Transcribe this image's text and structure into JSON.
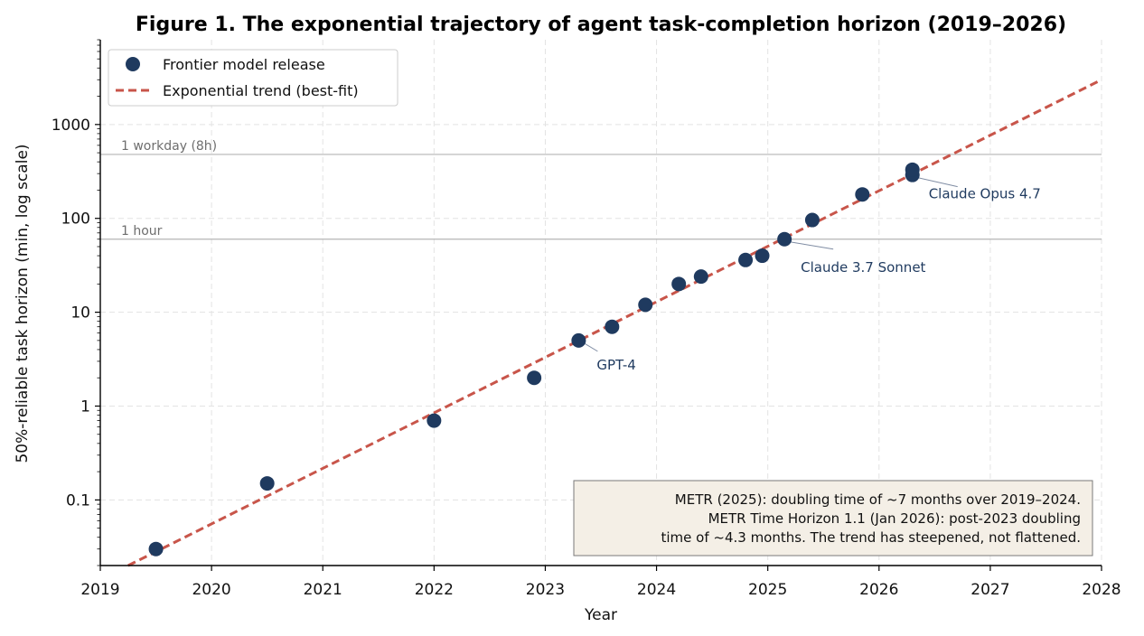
{
  "chart_data": {
    "type": "scatter",
    "title": "Figure 1. The exponential trajectory of agent task-completion horizon (2019–2026)",
    "xlabel": "Year",
    "ylabel": "50%-reliable task horizon (min, log scale)",
    "xlim": [
      2019,
      2028
    ],
    "ylim": [
      0.02,
      8000
    ],
    "yscale": "log",
    "grid": true,
    "x_ticks": [
      "2019",
      "2020",
      "2021",
      "2022",
      "2023",
      "2024",
      "2025",
      "2026",
      "2027",
      "2028"
    ],
    "y_ticks": [
      {
        "value": 0.1,
        "label": "0.1"
      },
      {
        "value": 1,
        "label": "1"
      },
      {
        "value": 10,
        "label": "10"
      },
      {
        "value": 100,
        "label": "100"
      },
      {
        "value": 1000,
        "label": "1000"
      }
    ],
    "series": [
      {
        "name": "Frontier model release",
        "kind": "points",
        "color": "#1f3a5f",
        "points": [
          {
            "x": 2019.5,
            "y": 0.03
          },
          {
            "x": 2020.5,
            "y": 0.15
          },
          {
            "x": 2022.0,
            "y": 0.7
          },
          {
            "x": 2022.9,
            "y": 2
          },
          {
            "x": 2023.3,
            "y": 5
          },
          {
            "x": 2023.6,
            "y": 7
          },
          {
            "x": 2023.9,
            "y": 12
          },
          {
            "x": 2024.2,
            "y": 20
          },
          {
            "x": 2024.4,
            "y": 24
          },
          {
            "x": 2024.8,
            "y": 36
          },
          {
            "x": 2024.95,
            "y": 40
          },
          {
            "x": 2025.15,
            "y": 60
          },
          {
            "x": 2025.4,
            "y": 96
          },
          {
            "x": 2025.85,
            "y": 180
          },
          {
            "x": 2026.3,
            "y": 290
          },
          {
            "x": 2026.3,
            "y": 330
          }
        ]
      },
      {
        "name": "Exponential trend (best-fit)",
        "kind": "line",
        "color": "#c8554a",
        "points": [
          {
            "x": 2019.25,
            "y": 0.02
          },
          {
            "x": 2028.0,
            "y": 3000
          }
        ]
      }
    ],
    "reference_lines": [
      {
        "y": 480,
        "label": "1 workday (8h)"
      },
      {
        "y": 60,
        "label": "1 hour"
      }
    ],
    "annotations": [
      {
        "label": "GPT-4",
        "point": {
          "x": 2023.3,
          "y": 5
        }
      },
      {
        "label": "Claude 3.7 Sonnet",
        "point": {
          "x": 2025.15,
          "y": 60
        }
      },
      {
        "label": "Claude Opus 4.7",
        "point": {
          "x": 2026.3,
          "y": 290
        }
      }
    ],
    "legend": {
      "placement": "top-left",
      "entries": [
        "Frontier model release",
        "Exponential trend (best-fit)"
      ]
    },
    "note": {
      "placement": "bottom-right",
      "lines": [
        "METR (2025): doubling time of ~7 months over 2019–2024.",
        "METR Time Horizon 1.1 (Jan 2026): post-2023 doubling",
        "time of ~4.3 months. The trend has steepened, not flattened."
      ]
    },
    "colors": {
      "points": "#1f3a5f",
      "trend": "#c8554a",
      "reference": "#b5b5b5",
      "grid": "#e3e3e3",
      "note_bg": "#f4efe6",
      "note_border": "#7a7a7a",
      "annotation_text": "#1f3a5f",
      "annotation_line": "#7f8ca3"
    }
  }
}
